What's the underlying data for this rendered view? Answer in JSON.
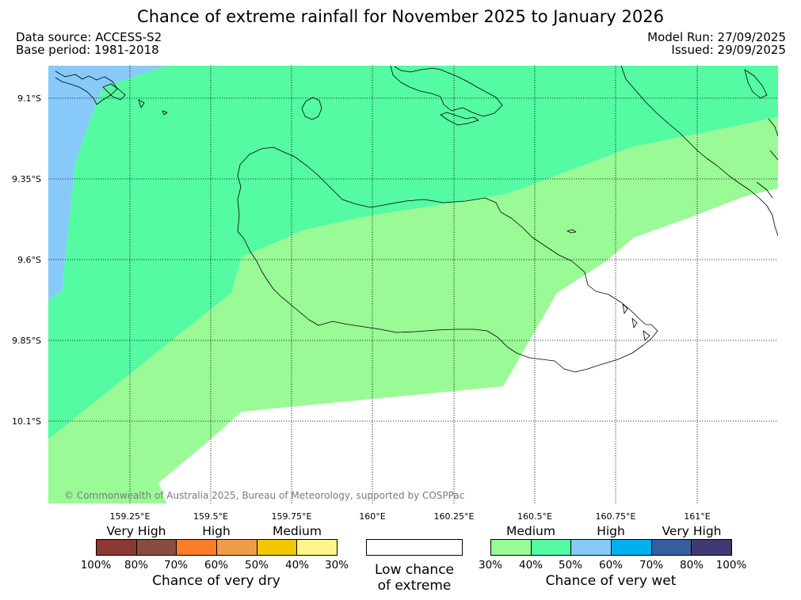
{
  "title": "Chance of extreme rainfall for November 2025 to January 2026",
  "data_source": "Data source: ACCESS-S2",
  "base_period": "Base period: 1981-2018",
  "model_run": "Model Run: 27/09/2025",
  "issued": "Issued: 29/09/2025",
  "copyright": "© Commonwealth of Australia 2025, Bureau of Meteorology, supported by COSPPac",
  "lat_labels": [
    "9.1°S",
    "9.35°S",
    "9.6°S",
    "9.85°S",
    "10.1°S"
  ],
  "lon_labels": [
    "159.25°E",
    "159.5°E",
    "159.75°E",
    "160°E",
    "160.25°E",
    "160.5°E",
    "160.75°E",
    "161°E"
  ],
  "colors": {
    "wet_30_40": "#9afa96",
    "wet_40_50": "#55fba2",
    "wet_50_60": "#87cafa",
    "wet_60_70": "#00b0ef",
    "wet_70_80": "#33609c",
    "wet_80_100": "#3f3a73",
    "dry_100_80": "#8a3a33",
    "dry_80_70": "#8a4c3e",
    "dry_70_60": "#fb7d2a",
    "dry_60_50": "#ee9c4a",
    "dry_50_40": "#f0c800",
    "dry_40_30": "#fff58a"
  },
  "legend": {
    "dry": {
      "categories": [
        "Very High",
        "High",
        "Medium"
      ],
      "ticks": [
        "100%",
        "80%",
        "70%",
        "60%",
        "50%",
        "40%",
        "30%"
      ],
      "title": "Chance of very dry"
    },
    "low": {
      "line1": "Low chance",
      "line2": "of extreme"
    },
    "wet": {
      "categories": [
        "Medium",
        "High",
        "Very High"
      ],
      "ticks": [
        "30%",
        "40%",
        "50%",
        "60%",
        "70%",
        "80%",
        "100%"
      ],
      "title": "Chance of very wet"
    }
  }
}
